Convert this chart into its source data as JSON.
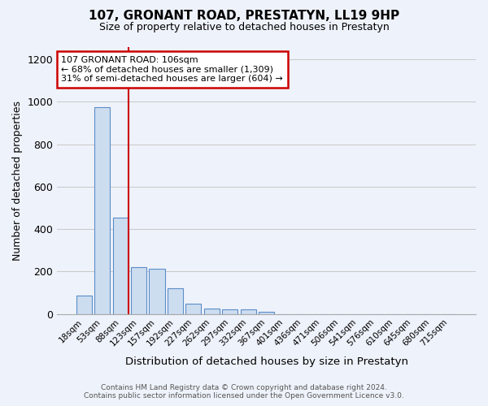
{
  "title": "107, GRONANT ROAD, PRESTATYN, LL19 9HP",
  "subtitle": "Size of property relative to detached houses in Prestatyn",
  "xlabel": "Distribution of detached houses by size in Prestatyn",
  "ylabel": "Number of detached properties",
  "footer_line1": "Contains HM Land Registry data © Crown copyright and database right 2024.",
  "footer_line2": "Contains public sector information licensed under the Open Government Licence v3.0.",
  "categories": [
    "18sqm",
    "53sqm",
    "88sqm",
    "123sqm",
    "157sqm",
    "192sqm",
    "227sqm",
    "262sqm",
    "297sqm",
    "332sqm",
    "367sqm",
    "401sqm",
    "436sqm",
    "471sqm",
    "506sqm",
    "541sqm",
    "576sqm",
    "610sqm",
    "645sqm",
    "680sqm",
    "715sqm"
  ],
  "values": [
    85,
    975,
    455,
    220,
    215,
    120,
    47,
    25,
    22,
    20,
    10,
    0,
    0,
    0,
    0,
    0,
    0,
    0,
    0,
    0,
    0
  ],
  "bar_color": "#cdddf0",
  "bar_edge_color": "#5b8dc8",
  "background_color": "#eef2fa",
  "grid_color": "#c8c8c8",
  "annotation_line1": "107 GRONANT ROAD: 106sqm",
  "annotation_line2": "← 68% of detached houses are smaller (1,309)",
  "annotation_line3": "31% of semi-detached houses are larger (604) →",
  "annotation_box_color": "white",
  "annotation_box_edge": "#cc0000",
  "red_line_x": 2.42,
  "ylim": [
    0,
    1260
  ],
  "yticks": [
    0,
    200,
    400,
    600,
    800,
    1000,
    1200
  ]
}
